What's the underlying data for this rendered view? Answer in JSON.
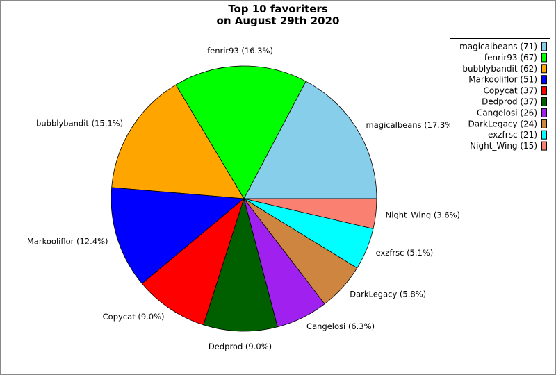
{
  "chart_data": {
    "type": "pie",
    "title": [
      "Top 10 favoriters",
      "on August 29th 2020"
    ],
    "start_angle_deg": 0,
    "direction": "counterclockwise",
    "legend_position": "top-right",
    "slices": [
      {
        "name": "magicalbeans",
        "value": 71,
        "percent_label": "magicalbeans (17.3%)",
        "legend_label": "magicalbeans (71)",
        "color": "#87ceeb"
      },
      {
        "name": "fenrir93",
        "value": 67,
        "percent_label": "fenrir93 (16.3%)",
        "legend_label": "fenrir93 (67)",
        "color": "#00ff00"
      },
      {
        "name": "bubblybandit",
        "value": 62,
        "percent_label": "bubblybandit (15.1%)",
        "legend_label": "bubblybandit (62)",
        "color": "#ffa500"
      },
      {
        "name": "Markooliflor",
        "value": 51,
        "percent_label": "Markooliflor (12.4%)",
        "legend_label": "Markooliflor (51)",
        "color": "#0000ff"
      },
      {
        "name": "Copycat",
        "value": 37,
        "percent_label": "Copycat (9.0%)",
        "legend_label": "Copycat (37)",
        "color": "#ff0000"
      },
      {
        "name": "Dedprod",
        "value": 37,
        "percent_label": "Dedprod (9.0%)",
        "legend_label": "Dedprod (37)",
        "color": "#006000"
      },
      {
        "name": "Cangelosi",
        "value": 26,
        "percent_label": "Cangelosi (6.3%)",
        "legend_label": "Cangelosi (26)",
        "color": "#a020f0"
      },
      {
        "name": "DarkLegacy",
        "value": 24,
        "percent_label": "DarkLegacy (5.8%)",
        "legend_label": "DarkLegacy (24)",
        "color": "#cd853f"
      },
      {
        "name": "exzfrsc",
        "value": 21,
        "percent_label": "exzfrsc (5.1%)",
        "legend_label": "exzfrsc (21)",
        "color": "#00ffff"
      },
      {
        "name": "Night_Wing",
        "value": 15,
        "percent_label": "Night_Wing (3.6%)",
        "legend_label": "Night_Wing (15)",
        "color": "#fa8072"
      }
    ]
  }
}
